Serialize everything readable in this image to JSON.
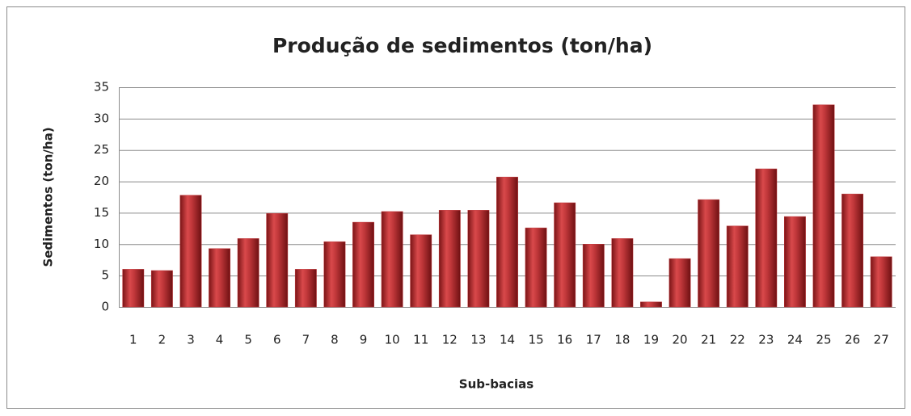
{
  "chart_data": {
    "type": "bar",
    "title": "Produção de sedimentos (ton/ha)",
    "x_label": "Sub-bacias",
    "y_label": "Sedimentos (ton/ha)",
    "categories": [
      "1",
      "2",
      "3",
      "4",
      "5",
      "6",
      "7",
      "8",
      "9",
      "10",
      "11",
      "12",
      "13",
      "14",
      "15",
      "16",
      "17",
      "18",
      "19",
      "20",
      "21",
      "22",
      "23",
      "24",
      "25",
      "26",
      "27"
    ],
    "values": [
      6.0,
      5.8,
      17.8,
      9.3,
      10.9,
      14.9,
      6.0,
      10.4,
      13.5,
      15.2,
      11.5,
      15.4,
      15.4,
      20.7,
      12.6,
      16.6,
      10.0,
      10.9,
      0.8,
      7.7,
      17.1,
      12.9,
      22.0,
      14.4,
      32.2,
      18.0,
      8.0
    ],
    "color": "#c0373a",
    "ylim": [
      0,
      35
    ],
    "yticks": [
      0,
      5,
      10,
      15,
      20,
      25,
      30,
      35
    ],
    "grid": true
  }
}
